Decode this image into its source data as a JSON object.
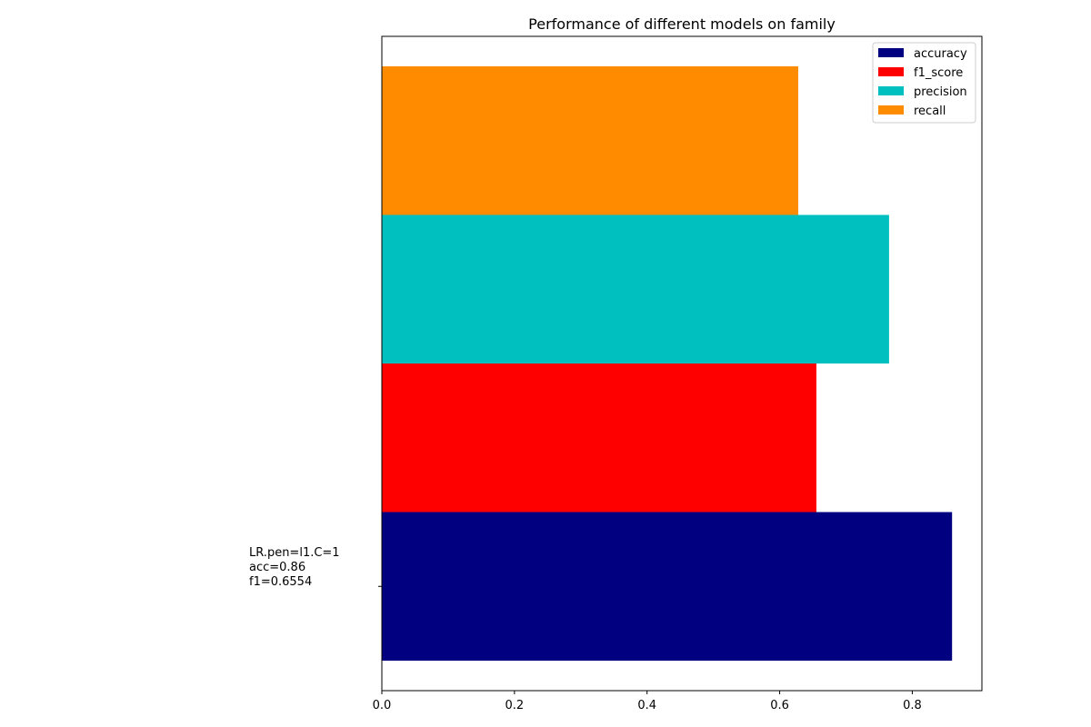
{
  "chart_data": {
    "type": "bar",
    "orientation": "horizontal",
    "title": "Performance of different models on family",
    "xlabel": "",
    "ylabel": "",
    "xlim": [
      0,
      0.905
    ],
    "categories": [
      "LR.pen=l1.C=1\nacc=0.86\nf1=0.6554"
    ],
    "x_ticks": [
      "0.0",
      "0.2",
      "0.4",
      "0.6",
      "0.8"
    ],
    "series": [
      {
        "name": "accuracy",
        "color": "#000080",
        "values": [
          0.86
        ]
      },
      {
        "name": "f1_score",
        "color": "#ff0000",
        "values": [
          0.6554
        ]
      },
      {
        "name": "precision",
        "color": "#00bfbf",
        "values": [
          0.765
        ]
      },
      {
        "name": "recall",
        "color": "#ff8c00",
        "values": [
          0.628
        ]
      }
    ],
    "legend": "top-right",
    "grid": false
  }
}
